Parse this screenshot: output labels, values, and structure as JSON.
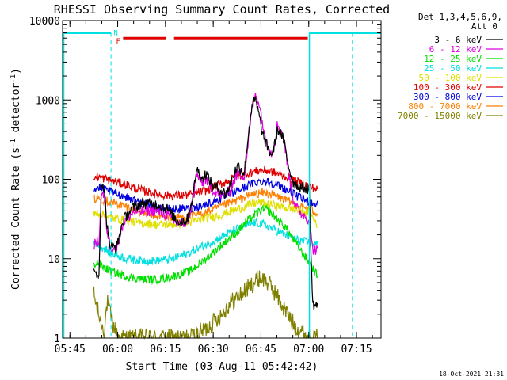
{
  "chart_data": {
    "type": "line",
    "title": "RHESSI Observing Summary Count Rates, Corrected",
    "xlabel": "Start Time (03-Aug-11 05:42:42)",
    "ylabel_main": "Corrected Count Rate (s",
    "ylabel_sup1": "-1",
    "ylabel_mid": " detector",
    "ylabel_sup2": "-1",
    "ylabel_end": ")",
    "y_scale": "log",
    "ylim": [
      1,
      10000
    ],
    "xlim_minutes": [
      0,
      100
    ],
    "x_ticks": [
      {
        "label": "05:45",
        "minute": 2.3
      },
      {
        "label": "06:00",
        "minute": 17.3
      },
      {
        "label": "06:15",
        "minute": 32.3
      },
      {
        "label": "06:30",
        "minute": 47.3
      },
      {
        "label": "06:45",
        "minute": 62.3
      },
      {
        "label": "07:00",
        "minute": 77.3
      },
      {
        "label": "07:15",
        "minute": 92.3
      }
    ],
    "y_ticks": [
      {
        "label": "1",
        "value": 1
      },
      {
        "label": "10",
        "value": 10
      },
      {
        "label": "100",
        "value": 100
      },
      {
        "label": "1000",
        "value": 1000
      },
      {
        "label": "10000",
        "value": 10000
      }
    ],
    "legend_header": [
      "Det 1,3,4,5,6,9,",
      "Att 0"
    ],
    "legend_position": "right",
    "series": [
      {
        "name": "3 - 6 keV",
        "color": "#000000",
        "points": [
          [
            9.8,
            6.5
          ],
          [
            11.5,
            6.8
          ],
          [
            12.2,
            90
          ],
          [
            13,
            85
          ],
          [
            14,
            25
          ],
          [
            15,
            14
          ],
          [
            17,
            14
          ],
          [
            19,
            30
          ],
          [
            22,
            44
          ],
          [
            25,
            50
          ],
          [
            30,
            48
          ],
          [
            33,
            42
          ],
          [
            36,
            30
          ],
          [
            39,
            30
          ],
          [
            41,
            62
          ],
          [
            42,
            135
          ],
          [
            43.5,
            110
          ],
          [
            44,
            100
          ],
          [
            45,
            120
          ],
          [
            47,
            85
          ],
          [
            48.5,
            78
          ],
          [
            50,
            72
          ],
          [
            51,
            65
          ],
          [
            52.5,
            80
          ],
          [
            53.5,
            110
          ],
          [
            55,
            150
          ],
          [
            57,
            120
          ],
          [
            57.5,
            180
          ],
          [
            58.5,
            420
          ],
          [
            59.5,
            900
          ],
          [
            60.5,
            1000
          ],
          [
            61.5,
            700
          ],
          [
            62.5,
            420
          ],
          [
            63.5,
            300
          ],
          [
            64.5,
            250
          ],
          [
            65.5,
            200
          ],
          [
            66.5,
            260
          ],
          [
            67.5,
            420
          ],
          [
            68.5,
            380
          ],
          [
            69.5,
            300
          ],
          [
            70.5,
            180
          ],
          [
            71.5,
            120
          ],
          [
            72.5,
            90
          ],
          [
            74,
            82
          ],
          [
            76,
            78
          ],
          [
            77.5,
            75
          ],
          [
            78.5,
            2.6
          ],
          [
            80,
            2.6
          ]
        ]
      },
      {
        "name": "6 - 12 keV",
        "color": "#e000e0",
        "points": [
          [
            9.8,
            15
          ],
          [
            11.5,
            17
          ],
          [
            12.2,
            70
          ],
          [
            13,
            60
          ],
          [
            14,
            22
          ],
          [
            15,
            14
          ],
          [
            17,
            14
          ],
          [
            19,
            28
          ],
          [
            22,
            38
          ],
          [
            25,
            40
          ],
          [
            30,
            40
          ],
          [
            33,
            35
          ],
          [
            36,
            28
          ],
          [
            39,
            28
          ],
          [
            41,
            55
          ],
          [
            42,
            115
          ],
          [
            43.5,
            95
          ],
          [
            44,
            90
          ],
          [
            45,
            100
          ],
          [
            47,
            75
          ],
          [
            50,
            62
          ],
          [
            52.5,
            70
          ],
          [
            53.5,
            90
          ],
          [
            55,
            120
          ],
          [
            57,
            110
          ],
          [
            57.5,
            150
          ],
          [
            58.5,
            350
          ],
          [
            59.5,
            800
          ],
          [
            60.5,
            1150
          ],
          [
            61.5,
            1000
          ],
          [
            62.5,
            600
          ],
          [
            63.5,
            350
          ],
          [
            64.5,
            280
          ],
          [
            65.5,
            210
          ],
          [
            66.5,
            280
          ],
          [
            67.5,
            500
          ],
          [
            68.5,
            420
          ],
          [
            69.5,
            320
          ],
          [
            70.5,
            160
          ],
          [
            71.5,
            90
          ],
          [
            72.5,
            55
          ],
          [
            74,
            40
          ],
          [
            76,
            35
          ],
          [
            77.5,
            30
          ],
          [
            78.5,
            13
          ],
          [
            80,
            13
          ]
        ]
      },
      {
        "name": "12 - 25 keV",
        "color": "#00e000",
        "points": [
          [
            9.8,
            8.5
          ],
          [
            11,
            9
          ],
          [
            12.2,
            8
          ],
          [
            15,
            7
          ],
          [
            20,
            6
          ],
          [
            25,
            5.5
          ],
          [
            30,
            5.5
          ],
          [
            35,
            6
          ],
          [
            40,
            7
          ],
          [
            45,
            10
          ],
          [
            50,
            15
          ],
          [
            55,
            22
          ],
          [
            58,
            30
          ],
          [
            62,
            40
          ],
          [
            64,
            42
          ],
          [
            66,
            36
          ],
          [
            70,
            25
          ],
          [
            74,
            14
          ],
          [
            77.5,
            9
          ],
          [
            80,
            6
          ]
        ]
      },
      {
        "name": "25 - 50 keV",
        "color": "#00e0e0",
        "points": [
          [
            9.8,
            15
          ],
          [
            11,
            16
          ],
          [
            12.2,
            14
          ],
          [
            15,
            12
          ],
          [
            20,
            10
          ],
          [
            25,
            9.5
          ],
          [
            30,
            9.5
          ],
          [
            35,
            10
          ],
          [
            40,
            12
          ],
          [
            45,
            15
          ],
          [
            50,
            19
          ],
          [
            55,
            24
          ],
          [
            60,
            28
          ],
          [
            62,
            28
          ],
          [
            65,
            25
          ],
          [
            70,
            20
          ],
          [
            74,
            17
          ],
          [
            77.5,
            16
          ],
          [
            80,
            15
          ]
        ]
      },
      {
        "name": "50 - 100 keV",
        "color": "#e0e000",
        "points": [
          [
            9.8,
            36
          ],
          [
            11,
            38
          ],
          [
            15,
            33
          ],
          [
            20,
            30
          ],
          [
            25,
            28
          ],
          [
            30,
            27
          ],
          [
            35,
            27
          ],
          [
            40,
            29
          ],
          [
            45,
            32
          ],
          [
            50,
            36
          ],
          [
            55,
            42
          ],
          [
            60,
            50
          ],
          [
            62,
            51
          ],
          [
            65,
            48
          ],
          [
            70,
            44
          ],
          [
            74,
            40
          ],
          [
            77.5,
            38
          ],
          [
            80,
            27
          ]
        ]
      },
      {
        "name": "100 - 300 keV",
        "color": "#e00000",
        "points": [
          [
            9.8,
            105
          ],
          [
            11,
            108
          ],
          [
            15,
            97
          ],
          [
            20,
            85
          ],
          [
            25,
            72
          ],
          [
            30,
            64
          ],
          [
            35,
            62
          ],
          [
            40,
            64
          ],
          [
            45,
            72
          ],
          [
            50,
            88
          ],
          [
            55,
            110
          ],
          [
            60,
            125
          ],
          [
            63,
            130
          ],
          [
            66,
            125
          ],
          [
            70,
            108
          ],
          [
            74,
            92
          ],
          [
            77.5,
            82
          ],
          [
            80,
            75
          ]
        ]
      },
      {
        "name": "300 - 800 keV",
        "color": "#0000e0",
        "points": [
          [
            9.8,
            75
          ],
          [
            11,
            78
          ],
          [
            15,
            70
          ],
          [
            20,
            60
          ],
          [
            25,
            50
          ],
          [
            30,
            43
          ],
          [
            35,
            42
          ],
          [
            40,
            43
          ],
          [
            45,
            48
          ],
          [
            50,
            58
          ],
          [
            55,
            72
          ],
          [
            60,
            90
          ],
          [
            63,
            95
          ],
          [
            66,
            90
          ],
          [
            70,
            75
          ],
          [
            74,
            60
          ],
          [
            77.5,
            52
          ],
          [
            80,
            48
          ]
        ]
      },
      {
        "name": "800 - 7000 keV",
        "color": "#ff7f00",
        "points": [
          [
            9.8,
            55
          ],
          [
            11,
            58
          ],
          [
            15,
            52
          ],
          [
            20,
            45
          ],
          [
            25,
            38
          ],
          [
            30,
            34
          ],
          [
            35,
            33
          ],
          [
            40,
            34
          ],
          [
            45,
            38
          ],
          [
            50,
            46
          ],
          [
            55,
            55
          ],
          [
            60,
            65
          ],
          [
            63,
            68
          ],
          [
            66,
            64
          ],
          [
            70,
            55
          ],
          [
            74,
            46
          ],
          [
            77.5,
            42
          ],
          [
            80,
            38
          ]
        ]
      },
      {
        "name": "7000 - 15000 keV",
        "color": "#808000",
        "points": [
          [
            9.8,
            3.5
          ],
          [
            11,
            2.2
          ],
          [
            12,
            1.6
          ],
          [
            13,
            1.2
          ],
          [
            14,
            2.8
          ],
          [
            16,
            1.4
          ],
          [
            18,
            1
          ],
          [
            40,
            1
          ],
          [
            45,
            1.3
          ],
          [
            50,
            2
          ],
          [
            52,
            2.6
          ],
          [
            55,
            3.3
          ],
          [
            58,
            4.2
          ],
          [
            60,
            5
          ],
          [
            62,
            5.8
          ],
          [
            64,
            5.2
          ],
          [
            66,
            4.2
          ],
          [
            68,
            3
          ],
          [
            70,
            2.2
          ],
          [
            72,
            1.6
          ],
          [
            75,
            1.2
          ],
          [
            77.5,
            1
          ],
          [
            80,
            1
          ]
        ]
      }
    ],
    "attenuator_bar": {
      "color": "#00e0e0",
      "value": 7000,
      "segments": [
        [
          0,
          15.2
        ],
        [
          77.5,
          100
        ]
      ],
      "dashed_markers": [
        15.2,
        91
      ]
    },
    "flare_bar": {
      "color": "#e00000",
      "value": 6000,
      "segments": [
        [
          19,
          32.5
        ],
        [
          35,
          77
        ]
      ]
    },
    "bar_labels": {
      "n_label": "N",
      "f_label": "F"
    },
    "datestamp": "18-Oct-2021 21:31"
  }
}
